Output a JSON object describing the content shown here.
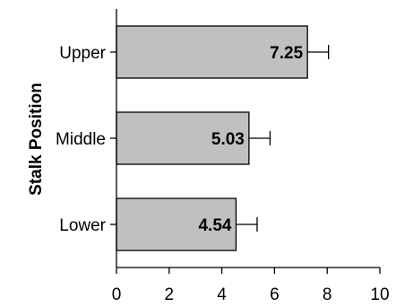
{
  "chart_data": {
    "type": "bar",
    "orientation": "horizontal",
    "title": "",
    "xlabel": "",
    "ylabel": "Stalk Position",
    "categories": [
      "Upper",
      "Middle",
      "Lower"
    ],
    "values": [
      7.25,
      5.03,
      4.54
    ],
    "error": [
      0.8,
      0.8,
      0.8
    ],
    "data_labels": [
      "7.25",
      "5.03",
      "4.54"
    ],
    "xlim": [
      0,
      10
    ],
    "xticks": [
      "0",
      "2",
      "4",
      "6",
      "8",
      "10"
    ],
    "grid": false,
    "bar_color": "#c0c0c0",
    "edge_color": "#000000"
  }
}
